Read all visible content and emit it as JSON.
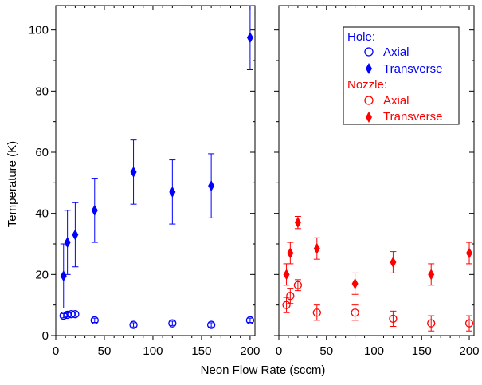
{
  "chart_data": {
    "type": "scatter",
    "xlabel": "Neon Flow Rate (sccm)",
    "ylabel": "Temperature (K)",
    "xlim": [
      0,
      205
    ],
    "ylim": [
      0,
      108
    ],
    "xticks": [
      0,
      50,
      100,
      150,
      200
    ],
    "yticks": [
      0,
      20,
      40,
      60,
      80,
      100
    ],
    "grid": false,
    "legend_position": "top-right",
    "legend": {
      "groups": [
        {
          "title": "Hole:",
          "color": "#0000ff",
          "entries": [
            {
              "label": "Axial",
              "marker": "circle-open"
            },
            {
              "label": "Transverse",
              "marker": "diamond-filled"
            }
          ]
        },
        {
          "title": "Nozzle:",
          "color": "#ff0000",
          "entries": [
            {
              "label": "Axial",
              "marker": "circle-open"
            },
            {
              "label": "Transverse",
              "marker": "diamond-filled"
            }
          ]
        }
      ]
    },
    "panels": [
      {
        "id": "left",
        "series": [
          {
            "group": "Hole",
            "name": "Axial",
            "color": "#0000ff",
            "marker": "circle-open",
            "x": [
              8,
              12,
              16,
              20,
              40,
              80,
              120,
              160,
              200
            ],
            "y": [
              6.5,
              6.8,
              7,
              7,
              5,
              3.5,
              4,
              3.5,
              5
            ],
            "err": [
              0.7,
              0.7,
              0.7,
              0.7,
              0.7,
              0.7,
              0.7,
              0.7,
              0.7
            ]
          },
          {
            "group": "Hole",
            "name": "Transverse",
            "color": "#0000ff",
            "marker": "diamond-filled",
            "x": [
              8,
              12,
              20,
              40,
              80,
              120,
              160,
              200
            ],
            "y": [
              19.5,
              30.5,
              33,
              41,
              53.5,
              47,
              49,
              97.5
            ],
            "err": [
              10.5,
              10.5,
              10.5,
              10.5,
              10.5,
              10.5,
              10.5,
              10.5
            ]
          }
        ]
      },
      {
        "id": "right",
        "series": [
          {
            "group": "Nozzle",
            "name": "Axial",
            "color": "#ff0000",
            "marker": "circle-open",
            "x": [
              8,
              12,
              20,
              40,
              80,
              120,
              160,
              200
            ],
            "y": [
              10,
              13,
              16.5,
              7.5,
              7.5,
              5.5,
              4,
              4
            ],
            "err": [
              2.5,
              2.5,
              1.8,
              2.5,
              2.5,
              2.5,
              2.5,
              2.5
            ]
          },
          {
            "group": "Nozzle",
            "name": "Transverse",
            "color": "#ff0000",
            "marker": "diamond-filled",
            "x": [
              8,
              12,
              20,
              40,
              80,
              120,
              160,
              200
            ],
            "y": [
              20,
              27,
              37,
              28.5,
              17,
              24,
              20,
              27
            ],
            "err": [
              3.5,
              3.5,
              2,
              3.5,
              3.5,
              3.5,
              3.5,
              3.5
            ]
          }
        ]
      }
    ]
  }
}
